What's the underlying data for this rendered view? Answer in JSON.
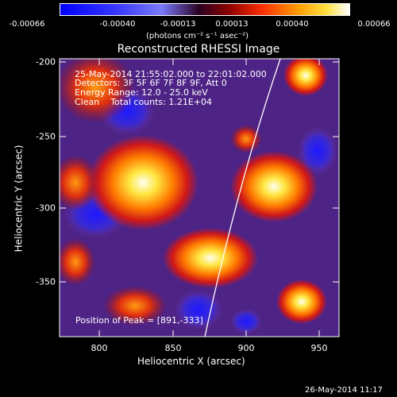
{
  "colorbar": {
    "ticks": [
      "-0.00066",
      "-0.00040",
      "-0.00013",
      "0.00013",
      "0.00040",
      "0.00066"
    ],
    "unit_label": "(photons cm⁻² s⁻¹ asec⁻²)"
  },
  "title": "Reconstructed RHESSI Image",
  "info": {
    "time_range": "25-May-2014 21:55:02.000 to 22:01:02.000",
    "detectors": "Detectors: 3F 5F 6F 7F 8F 9F, Att 0",
    "energy_range": "Energy Range: 12.0 - 25.0 keV",
    "clean": "Clean    Total counts: 1.21E+04"
  },
  "peak_label": "Position of Peak = [891,-333]",
  "axes": {
    "x_label": "Heliocentric X (arcsec)",
    "y_label": "Heliocentric Y (arcsec)",
    "x_ticks": [
      "800",
      "850",
      "900",
      "950"
    ],
    "y_ticks": [
      "-200",
      "-250",
      "-300",
      "-350"
    ]
  },
  "timestamp": "26-May-2014 11:17",
  "colors": {
    "cold": "#1e18ff",
    "violet": "#6a33a8",
    "red": "#d11818",
    "orange": "#ff7a00",
    "yellow": "#ffe640",
    "white": "#fffff0"
  }
}
